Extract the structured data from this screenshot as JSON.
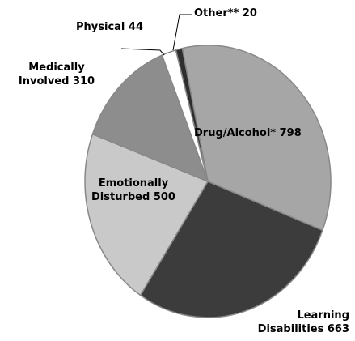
{
  "chart_data": {
    "type": "pie",
    "categories": [
      "Drug/Alcohol*",
      "Learning Disabilities",
      "Emotionally Disturbed",
      "Medically Involved",
      "Physical",
      "Other**"
    ],
    "values": [
      798,
      663,
      500,
      310,
      44,
      20
    ],
    "colors": [
      "#a6a6a6",
      "#3c3c3c",
      "#c9c9c9",
      "#8d8d8d",
      "#ffffff",
      "#2e2e2e"
    ]
  }
}
